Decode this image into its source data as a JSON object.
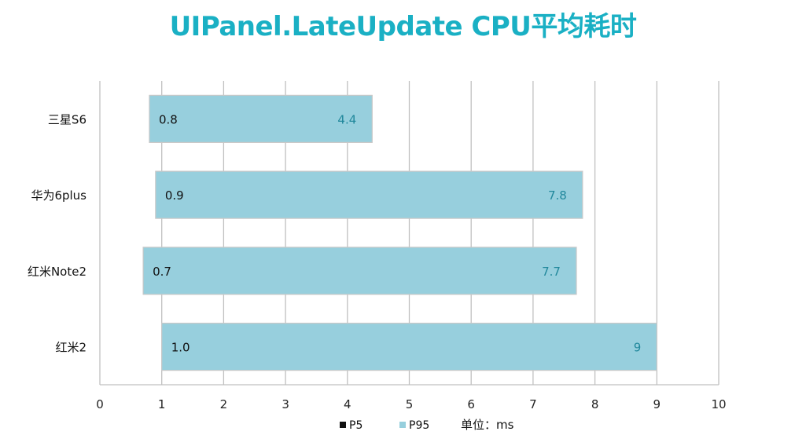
{
  "title": "UIPanel.LateUpdate CPU平均耗时",
  "colors": {
    "title": "#1ab0c4",
    "bar_fill": "#97cfdd",
    "bar_stroke": "#c8c8c8",
    "grid": "#c0c0c0",
    "start_label": "#111111",
    "end_label": "#21889c"
  },
  "chart_data": {
    "type": "bar",
    "orientation": "horizontal",
    "floating_range": true,
    "categories": [
      "三星S6",
      "华为6plus",
      "红米Note2",
      "红米2"
    ],
    "start_labels": [
      "0.8",
      "0.9",
      "0.7",
      "1.0"
    ],
    "end_labels": [
      "4.4",
      "7.8",
      "7.7",
      "9"
    ],
    "series": [
      {
        "name": "P5",
        "values": [
          0.8,
          0.9,
          0.7,
          1.0
        ],
        "color": "#111111"
      },
      {
        "name": "P95",
        "values": [
          4.4,
          7.8,
          7.7,
          9.0
        ],
        "color": "#97cfdd"
      }
    ],
    "xlim": [
      0,
      10
    ],
    "xticks": [
      "0",
      "1",
      "2",
      "3",
      "4",
      "5",
      "6",
      "7",
      "8",
      "9",
      "10"
    ],
    "grid": true,
    "legend_position": "bottom",
    "unit_label": "单位：ms"
  }
}
